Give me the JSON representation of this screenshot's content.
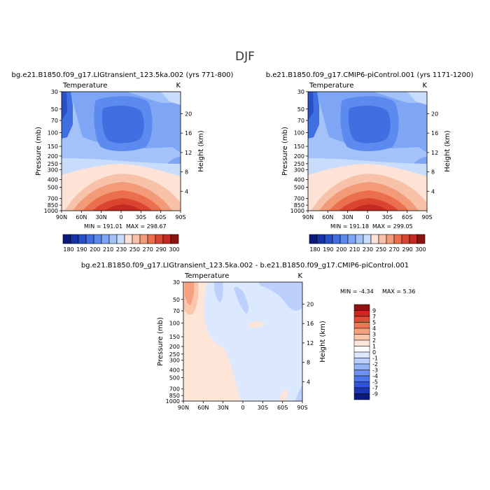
{
  "figure": {
    "season": "DJF"
  },
  "colors": {
    "abs_scale": [
      "#0a1a7a",
      "#1833a8",
      "#2850c8",
      "#3f6fe0",
      "#5c8aee",
      "#7fa5f5",
      "#a4c2fa",
      "#c8dcfc",
      "#fde3d6",
      "#f8c2a8",
      "#f39b78",
      "#eb6e4d",
      "#db4430",
      "#c42a1f",
      "#8a1410"
    ],
    "diff_scale": [
      "#0a1a7a",
      "#1b36b0",
      "#3155d8",
      "#4e74ea",
      "#6f92f2",
      "#96b3f7",
      "#bcd0fb",
      "#dce8fd",
      "#ffffff",
      "#fde6d8",
      "#fac7ad",
      "#f5a07f",
      "#ee7656",
      "#e34a35",
      "#c42a1f",
      "#8a1410"
    ]
  },
  "chart_data": [
    {
      "type": "heatmap",
      "name": "panel-left",
      "title": "bg.e21.B1850.f09_g17.LIGtransient_123.5ka.002 (yrs 771-800)",
      "field": "Temperature",
      "units": "K",
      "ylabel": "Pressure (mb)",
      "ylabel_right": "Height (km)",
      "x_ticks": [
        "90N",
        "60N",
        "30N",
        "0",
        "30S",
        "60S",
        "90S"
      ],
      "y_ticks": [
        "30",
        "50",
        "70",
        "100",
        "150",
        "200",
        "250",
        "300",
        "400",
        "500",
        "700",
        "850",
        "1000"
      ],
      "height_ticks": [
        "20",
        "16",
        "12",
        "8",
        "4"
      ],
      "min_label": "MIN = 191.01",
      "max_label": "MAX = 298.67",
      "min": 191.01,
      "max": 298.67,
      "colorbar_labels": [
        "180",
        "190",
        "200",
        "210",
        "230",
        "250",
        "270",
        "290",
        "300"
      ]
    },
    {
      "type": "heatmap",
      "name": "panel-right",
      "title": "b.e21.B1850.f09_g17.CMIP6-piControl.001 (yrs 1171-1200)",
      "field": "Temperature",
      "units": "K",
      "ylabel": "Pressure (mb)",
      "ylabel_right": "Height (km)",
      "x_ticks": [
        "90N",
        "60N",
        "30N",
        "0",
        "30S",
        "60S",
        "90S"
      ],
      "y_ticks": [
        "30",
        "50",
        "70",
        "100",
        "150",
        "200",
        "250",
        "300",
        "400",
        "500",
        "700",
        "850",
        "1000"
      ],
      "height_ticks": [
        "20",
        "16",
        "12",
        "8",
        "4"
      ],
      "min_label": "MIN = 191.18",
      "max_label": "MAX = 299.05",
      "min": 191.18,
      "max": 299.05,
      "colorbar_labels": [
        "180",
        "190",
        "200",
        "210",
        "230",
        "250",
        "270",
        "290",
        "300"
      ]
    },
    {
      "type": "heatmap",
      "name": "panel-diff",
      "title": "bg.e21.B1850.f09_g17.LIGtransient_123.5ka.002 - b.e21.B1850.f09_g17.CMIP6-piControl.001",
      "field": "Temperature",
      "units": "K",
      "ylabel": "Pressure (mb)",
      "ylabel_right": "Height (km)",
      "x_ticks": [
        "90N",
        "60N",
        "30N",
        "0",
        "30S",
        "60S",
        "90S"
      ],
      "y_ticks": [
        "30",
        "50",
        "70",
        "100",
        "150",
        "200",
        "250",
        "300",
        "400",
        "500",
        "700",
        "850",
        "1000"
      ],
      "height_ticks": [
        "20",
        "16",
        "12",
        "8",
        "4"
      ],
      "min_label": "MIN = -4.34",
      "max_label": "MAX = 5.36",
      "min": -4.34,
      "max": 5.36,
      "colorbar_labels": [
        "9",
        "7",
        "5",
        "4",
        "3",
        "2",
        "1",
        "0",
        "-1",
        "-2",
        "-3",
        "-4",
        "-5",
        "-7",
        "-9"
      ]
    }
  ]
}
